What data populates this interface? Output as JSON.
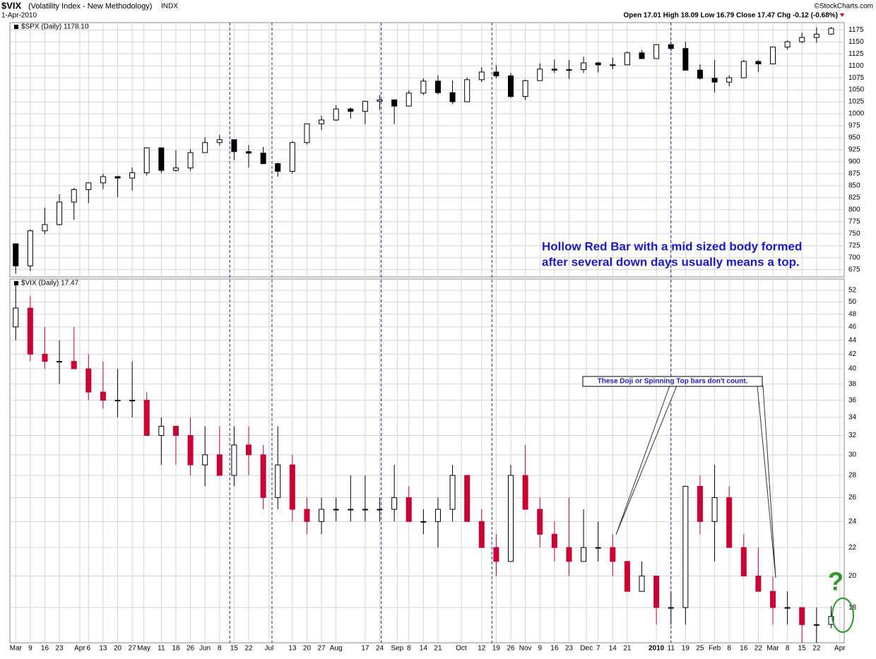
{
  "header": {
    "title": "$VIX",
    "subtitle": "(Volatility Index - New Methodology)",
    "exchange": "INDX",
    "date": "1-Apr-2010",
    "credit": "©StockCharts.com",
    "quote": "Open 17.01 High 18.09 Low 16.79 Close 17.47 Chg -0.12 (-0.68%)"
  },
  "vlines": [
    14.7,
    17.6,
    25.1,
    32.7,
    45.0
  ],
  "annotations": {
    "note": [
      "Hollow Red Bar with a mid sized body formed",
      "after several down days usually means a top."
    ],
    "callout": "These Doji or Spinning Top bars don't count.",
    "question": "?"
  },
  "chart_data": [
    {
      "type": "candlestick",
      "label": "$SPX (Daily) 1178.10",
      "up_color": "#000000",
      "down_color": "#000000",
      "grid": true,
      "ylim": [
        660,
        1190
      ],
      "yticks": [
        675,
        700,
        725,
        750,
        775,
        800,
        825,
        850,
        875,
        900,
        925,
        950,
        975,
        1000,
        1025,
        1050,
        1075,
        1100,
        1125,
        1150,
        1175
      ],
      "x": [
        0,
        1,
        2,
        3,
        4,
        5,
        6,
        7,
        8,
        9,
        10,
        11,
        12,
        13,
        14,
        15,
        16,
        17,
        18,
        19,
        20,
        21,
        22,
        23,
        24,
        25,
        26,
        27,
        28,
        29,
        30,
        31,
        32,
        33,
        34,
        35,
        36,
        37,
        38,
        39,
        40,
        41,
        42,
        43,
        44,
        45,
        46,
        47,
        48,
        49,
        50,
        51,
        52,
        53,
        54,
        55,
        56
      ],
      "open": [
        729,
        683,
        756,
        769,
        816,
        842,
        856,
        869,
        866,
        877,
        929,
        882,
        887,
        919,
        940,
        946,
        921,
        918,
        896,
        880,
        940,
        979,
        987,
        1010,
        1005,
        1026,
        1029,
        1016,
        1043,
        1068,
        1044,
        1025,
        1071,
        1087,
        1079,
        1036,
        1069,
        1093,
        1091,
        1092,
        1106,
        1102,
        1102,
        1127,
        1115,
        1144,
        1136,
        1091,
        1074,
        1066,
        1075,
        1109,
        1104,
        1139,
        1150,
        1159,
        1166
      ],
      "high": [
        729,
        759,
        804,
        832,
        845,
        857,
        875,
        871,
        888,
        930,
        929,
        924,
        926,
        951,
        956,
        946,
        935,
        931,
        898,
        943,
        979,
        996,
        1018,
        1013,
        1027,
        1039,
        1029,
        1049,
        1074,
        1080,
        1069,
        1076,
        1097,
        1101,
        1085,
        1071,
        1105,
        1113,
        1112,
        1119,
        1108,
        1117,
        1130,
        1133,
        1145,
        1150,
        1150,
        1103,
        1112,
        1080,
        1112,
        1112,
        1139,
        1153,
        1169,
        1180,
        1181
      ],
      "low": [
        667,
        672,
        749,
        767,
        779,
        814,
        843,
        826,
        840,
        871,
        876,
        879,
        881,
        919,
        934,
        903,
        888,
        895,
        869,
        875,
        936,
        966,
        985,
        990,
        978,
        1008,
        978,
        1016,
        1039,
        1040,
        1020,
        1025,
        1066,
        1074,
        1033,
        1029,
        1069,
        1085,
        1073,
        1085,
        1086,
        1093,
        1102,
        1115,
        1115,
        1131,
        1090,
        1071,
        1044,
        1057,
        1075,
        1087,
        1104,
        1134,
        1147,
        1148,
        1165
      ],
      "close": [
        683,
        756,
        769,
        816,
        842,
        856,
        869,
        866,
        877,
        929,
        882,
        887,
        919,
        940,
        946,
        921,
        918,
        896,
        880,
        940,
        979,
        987,
        1010,
        1005,
        1026,
        1029,
        1016,
        1043,
        1068,
        1044,
        1025,
        1071,
        1087,
        1079,
        1036,
        1069,
        1093,
        1091,
        1092,
        1106,
        1102,
        1102,
        1127,
        1115,
        1144,
        1136,
        1091,
        1074,
        1066,
        1075,
        1109,
        1104,
        1139,
        1150,
        1159,
        1166,
        1178
      ]
    },
    {
      "type": "candlestick",
      "label": "$VIX (Daily) 17.47",
      "up_color": "#000000",
      "down_color": "#cc0033",
      "grid": true,
      "log": true,
      "ylim": [
        16,
        54
      ],
      "yticks": [
        18,
        20,
        22,
        24,
        26,
        28,
        30,
        32,
        34,
        36,
        38,
        40,
        42,
        44,
        46,
        48,
        50,
        52
      ],
      "xlim": [
        -0.4,
        56.9
      ],
      "xticks": [
        {
          "value": 0,
          "label": "Mar"
        },
        {
          "value": 1,
          "label": "9"
        },
        {
          "value": 2,
          "label": "16"
        },
        {
          "value": 3,
          "label": "23"
        },
        {
          "value": 4.4,
          "label": "Apr"
        },
        {
          "value": 5,
          "label": "6"
        },
        {
          "value": 6,
          "label": "13"
        },
        {
          "value": 7,
          "label": "20"
        },
        {
          "value": 8,
          "label": "27"
        },
        {
          "value": 8.8,
          "label": "May"
        },
        {
          "value": 10,
          "label": "11"
        },
        {
          "value": 11,
          "label": "18"
        },
        {
          "value": 12,
          "label": "26"
        },
        {
          "value": 13,
          "label": "Jun"
        },
        {
          "value": 14,
          "label": "8"
        },
        {
          "value": 15,
          "label": "15"
        },
        {
          "value": 16,
          "label": "22"
        },
        {
          "value": 17.4,
          "label": "Jul"
        },
        {
          "value": 19,
          "label": "13"
        },
        {
          "value": 20,
          "label": "20"
        },
        {
          "value": 21,
          "label": "27"
        },
        {
          "value": 22,
          "label": "Aug"
        },
        {
          "value": 24,
          "label": "17"
        },
        {
          "value": 25,
          "label": "24"
        },
        {
          "value": 26.2,
          "label": "Sep"
        },
        {
          "value": 27,
          "label": "8"
        },
        {
          "value": 28,
          "label": "14"
        },
        {
          "value": 29,
          "label": "21"
        },
        {
          "value": 30.6,
          "label": "Oct"
        },
        {
          "value": 32,
          "label": "12"
        },
        {
          "value": 33,
          "label": "19"
        },
        {
          "value": 34,
          "label": "26"
        },
        {
          "value": 35,
          "label": "Nov"
        },
        {
          "value": 36,
          "label": "9"
        },
        {
          "value": 37,
          "label": "16"
        },
        {
          "value": 38,
          "label": "23"
        },
        {
          "value": 39.2,
          "label": "Dec"
        },
        {
          "value": 40,
          "label": "7"
        },
        {
          "value": 41,
          "label": "14"
        },
        {
          "value": 42,
          "label": "21"
        },
        {
          "value": 44,
          "label": "2010"
        },
        {
          "value": 45,
          "label": "11"
        },
        {
          "value": 46,
          "label": "19"
        },
        {
          "value": 47,
          "label": "25"
        },
        {
          "value": 48,
          "label": "Feb"
        },
        {
          "value": 49,
          "label": "8"
        },
        {
          "value": 50,
          "label": "16"
        },
        {
          "value": 51,
          "label": "22"
        },
        {
          "value": 52,
          "label": "Mar"
        },
        {
          "value": 53,
          "label": "8"
        },
        {
          "value": 54,
          "label": "15"
        },
        {
          "value": 55,
          "label": "22"
        },
        {
          "value": 56.6,
          "label": "Apr"
        }
      ],
      "x": [
        0,
        1,
        2,
        3,
        4,
        5,
        6,
        7,
        8,
        9,
        10,
        11,
        12,
        13,
        14,
        15,
        16,
        17,
        18,
        19,
        20,
        21,
        22,
        23,
        24,
        25,
        26,
        27,
        28,
        29,
        30,
        31,
        32,
        33,
        34,
        35,
        36,
        37,
        38,
        39,
        40,
        41,
        42,
        43,
        44,
        45,
        46,
        47,
        48,
        49,
        50,
        51,
        52,
        53,
        54,
        55,
        56
      ],
      "open": [
        46,
        49,
        42,
        41,
        41,
        40,
        37,
        36,
        36,
        36,
        32,
        33,
        32,
        29,
        30,
        28,
        31,
        30,
        26,
        29,
        25,
        24,
        25,
        25,
        25,
        25,
        25,
        26,
        24,
        24,
        25,
        28,
        24,
        22,
        21,
        28,
        25,
        23,
        22,
        21,
        22,
        22,
        21,
        19,
        20,
        18,
        18,
        27,
        24,
        26,
        22,
        20,
        19,
        18,
        18,
        17,
        17.01
      ],
      "high": [
        53,
        51,
        46,
        44,
        46,
        42,
        41,
        40,
        41,
        37,
        34,
        33,
        34,
        33,
        33,
        33,
        33,
        31,
        33,
        30,
        26,
        26,
        26,
        28,
        28,
        26,
        29,
        27,
        25,
        26,
        29,
        28,
        25,
        23,
        29,
        31,
        26,
        24,
        26,
        25,
        24,
        23,
        21,
        21,
        20,
        19,
        27,
        28,
        29,
        27,
        23,
        22,
        20,
        19,
        18,
        18,
        18.09
      ],
      "low": [
        44,
        41,
        40,
        38,
        40,
        36,
        35,
        34,
        34,
        32,
        29,
        29,
        28,
        27,
        28,
        27,
        28,
        25,
        25,
        24,
        23,
        23,
        24,
        24,
        24,
        24,
        24,
        24,
        23,
        22,
        24,
        24,
        22,
        20,
        21,
        25,
        22,
        21,
        20,
        21,
        21,
        20,
        19,
        19,
        17,
        17,
        17,
        23,
        21,
        22,
        20,
        19,
        17,
        17,
        16,
        16,
        16.79
      ],
      "close": [
        49,
        42,
        41,
        41,
        40,
        37,
        36,
        36,
        36,
        32,
        33,
        32,
        29,
        30,
        28,
        31,
        30,
        26,
        29,
        25,
        24,
        25,
        25,
        25,
        25,
        25,
        26,
        24,
        24,
        25,
        28,
        24,
        22,
        21,
        28,
        25,
        23,
        22,
        21,
        22,
        22,
        21,
        19,
        20,
        18,
        18,
        27,
        24,
        26,
        22,
        20,
        19,
        18,
        18,
        17,
        17,
        17.47
      ]
    }
  ]
}
